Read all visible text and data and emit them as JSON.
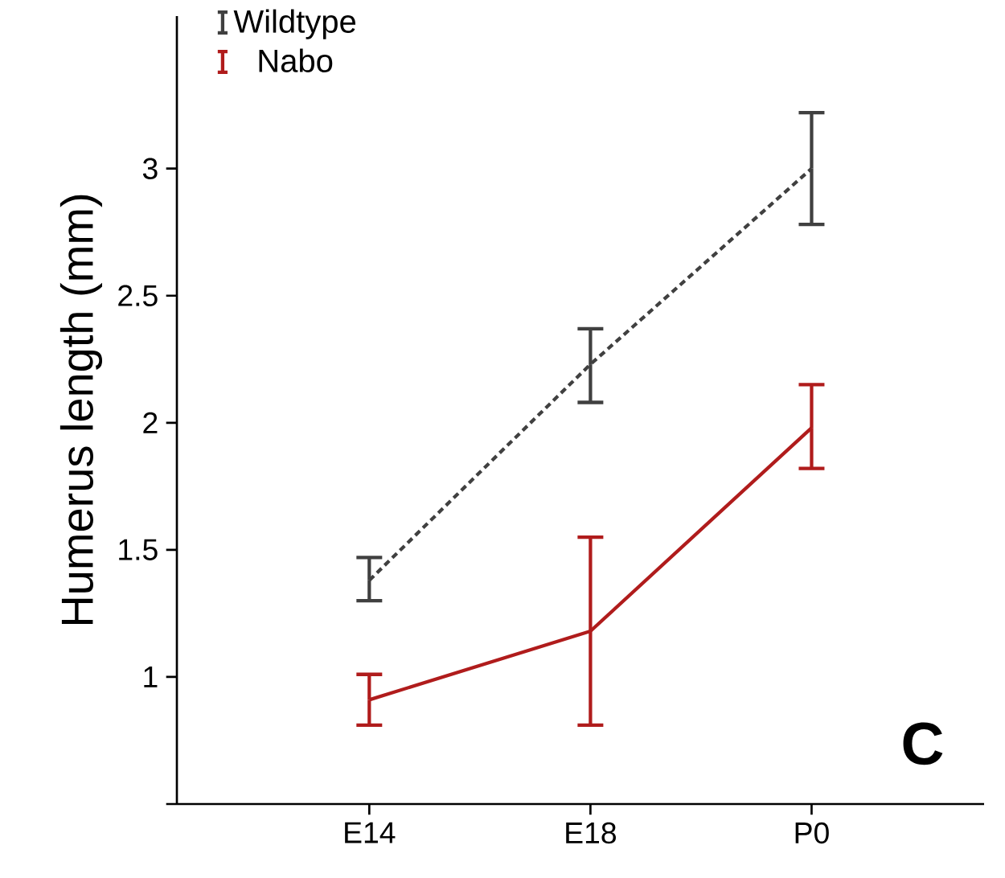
{
  "chart_data": {
    "type": "line",
    "ylabel": "Humerus length (mm)",
    "categories": [
      "E14",
      "E18",
      "P0"
    ],
    "series": [
      {
        "name": "Wildtype",
        "color": "#404040",
        "line_style": "dashed",
        "values": [
          1.38,
          2.23,
          3.0
        ],
        "errors": [
          [
            1.3,
            1.47
          ],
          [
            2.08,
            2.37
          ],
          [
            2.78,
            3.22
          ]
        ]
      },
      {
        "name": "Nabo",
        "color": "#b01c1c",
        "line_style": "solid",
        "values": [
          0.91,
          1.18,
          1.98
        ],
        "errors": [
          [
            0.81,
            1.01
          ],
          [
            0.81,
            1.55
          ],
          [
            1.82,
            2.15
          ]
        ]
      }
    ],
    "ylim": [
      0.5,
      3.6
    ],
    "yticks": [
      {
        "value": 0.5,
        "label": null
      },
      1,
      1.5,
      2,
      2.5,
      3
    ],
    "legend": "top left",
    "marker": "none",
    "grid": false,
    "annotations": [
      "C"
    ]
  }
}
